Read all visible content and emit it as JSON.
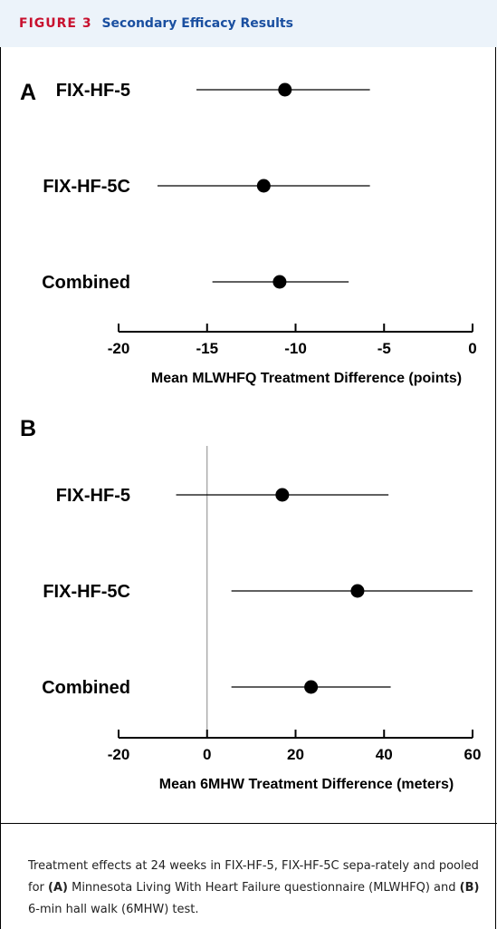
{
  "header": {
    "figure_label": "FIGURE 3",
    "title": "Secondary Efficacy Results"
  },
  "chart_data": [
    {
      "type": "scatter",
      "panel": "A",
      "categories": [
        "FIX-HF-5",
        "FIX-HF-5C",
        "Combined"
      ],
      "point_estimates": [
        -10.6,
        -11.8,
        -10.9
      ],
      "ci_lower": [
        -15.6,
        -17.8,
        -14.7
      ],
      "ci_upper": [
        -5.8,
        -5.8,
        -7.0
      ],
      "xlabel": "Mean MLWHFQ Treatment Difference (points)",
      "xlim": [
        -20,
        0
      ],
      "xticks": [
        -20,
        -15,
        -10,
        -5,
        0
      ],
      "reference_line": null,
      "grid": false
    },
    {
      "type": "scatter",
      "panel": "B",
      "categories": [
        "FIX-HF-5",
        "FIX-HF-5C",
        "Combined"
      ],
      "point_estimates": [
        17,
        34,
        23.5
      ],
      "ci_lower": [
        -7,
        5.5,
        5.5
      ],
      "ci_upper": [
        41,
        60,
        41.5
      ],
      "xlabel": "Mean 6MHW Treatment Difference (meters)",
      "xlim": [
        -20,
        60
      ],
      "xticks": [
        -20,
        0,
        20,
        40,
        60
      ],
      "reference_line": 0,
      "grid": false
    }
  ],
  "caption": {
    "text_1": "Treatment effects at 24 weeks in FIX-HF-5, FIX-HF-5C sepa-rately and pooled for ",
    "bold_a": "(A)",
    "text_2": " Minnesota Living With Heart Failure questionnaire (MLWHFQ) and ",
    "bold_b": "(B)",
    "text_3": " 6-min hall walk (6MHW) test."
  }
}
